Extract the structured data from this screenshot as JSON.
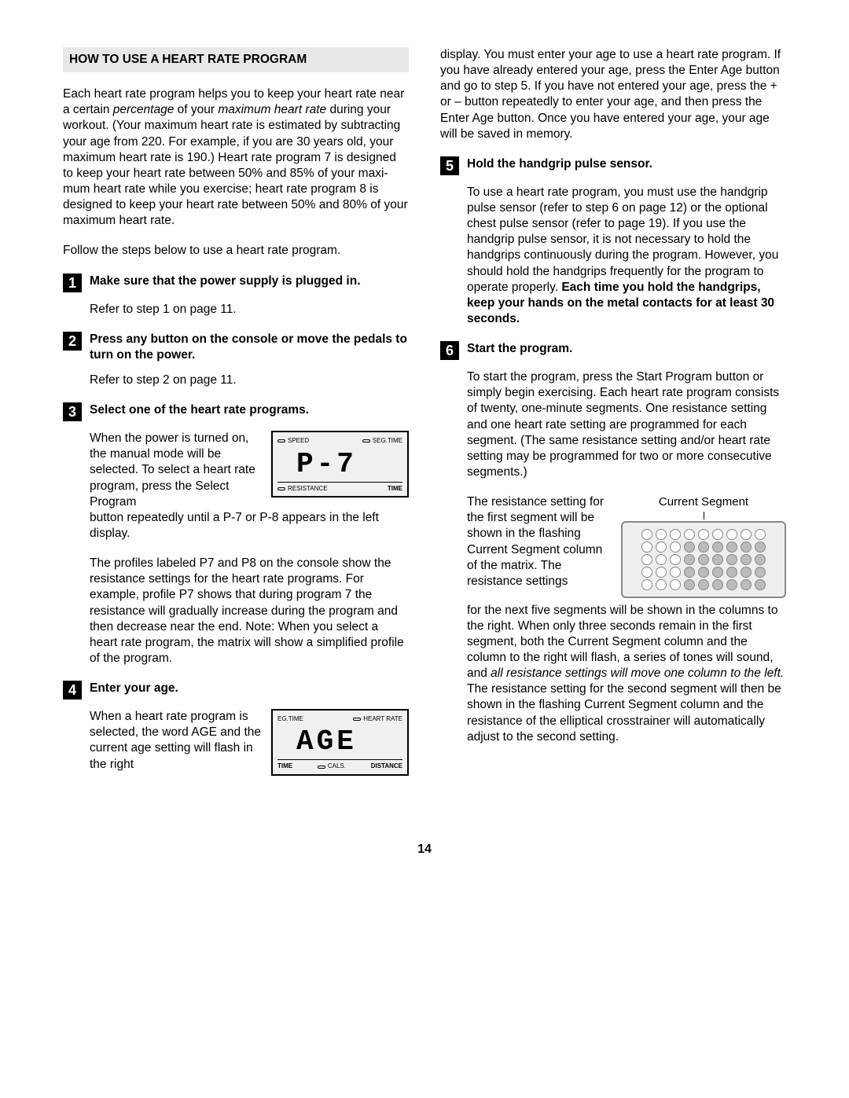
{
  "section_title": "HOW TO USE A HEART RATE PROGRAM",
  "intro_p1_a": "Each heart rate program helps you to keep your heart rate near a certain ",
  "intro_p1_it1": "percentage",
  "intro_p1_b": " of your ",
  "intro_p1_it2": "maximum heart rate",
  "intro_p1_c": " during your workout. (Your maximum heart rate is estimated by subtracting your age from 220. For example, if you are 30 years old, your maximum heart rate is 190.) Heart rate program 7 is designed to keep your heart rate between 50% and 85% of your maxi­mum heart rate while you exercise; heart rate pro­gram 8 is designed to keep your heart rate between 50% and 80% of your maximum heart rate.",
  "intro_p2": "Follow the steps below to use a heart rate program.",
  "steps": {
    "s1": {
      "num": "1",
      "head": "Make sure that the power supply is plugged in.",
      "body": "Refer to step 1 on page 11."
    },
    "s2": {
      "num": "2",
      "head": "Press any button on the console or move the pedals to turn on the power.",
      "body": "Refer to step 2 on page 11."
    },
    "s3": {
      "num": "3",
      "head": "Select one of the heart rate programs.",
      "p1": "When the power is turned on, the manual mode will be selected. To select a heart rate program, press the Select Program",
      "p1b": "button repeatedly until a P-7 or P-8 appears in the left display.",
      "p2": "The profiles labeled P7 and P8 on the console show the resistance settings for the heart rate programs. For example, profile P7 shows that during program 7 the resistance will gradually increase during the program and then decrease near the end. Note: When you select a heart rate program, the matrix will show a simplified profile of the program.",
      "lcd": {
        "top": {
          "a": "SPEED",
          "b": "SEG.TIME"
        },
        "seg": "P-7",
        "bot": {
          "a": "RESISTANCE",
          "b": "TIME"
        }
      }
    },
    "s4": {
      "num": "4",
      "head": "Enter your age.",
      "p1": "When a heart rate program is select­ed, the word AGE and the current age setting will flash in the right",
      "lcd": {
        "top": {
          "a": "EG.TIME",
          "b": "HEART RATE"
        },
        "seg": "AGE",
        "bot": {
          "a": "TIME",
          "b": "CALS.",
          "c": "DISTANCE"
        }
      },
      "cont": "display. You must enter your age to use a heart rate program. If you have already entered your age, press the Enter Age button and go to step 5. If you have not entered your age, press the + or – button repeatedly to enter your age, and then press the Enter Age button. Once you have entered your age, your age will be saved in memory."
    },
    "s5": {
      "num": "5",
      "head": "Hold the handgrip pulse sensor.",
      "p1": "To use a heart rate program, you must use the handgrip pulse sensor (refer to step 6 on page 12) or the optional chest pulse sensor (refer to page 19). If you use the handgrip pulse sensor, it is not necessary to hold the handgrips continu­ously during the program. However, you should hold the handgrips frequently for the program to operate properly. ",
      "p1b": "Each time you hold the hand­grips, keep your hands on the metal contacts for at least 30 seconds."
    },
    "s6": {
      "num": "6",
      "head": "Start the program.",
      "p1": "To start the program, press the Start Program button or simply begin exercising. Each heart rate program consists of twenty, one-minute seg­ments. One resistance setting and one heart rate setting are programmed for each segment. (The same resistance setting and/or heart rate setting may be programmed for two or more consecutive segments.)",
      "p2a": "The resistance set­ting for the first segment will be shown in the flash­ing Current Segment column of the matrix. The resistance settings",
      "p2b": "for the next five segments will be shown in the columns to the right. When only three seconds remain in the first segment, both the Current Segment column and the column to the right will flash, a series of tones will sound, and ",
      "p2it": "all resis­tance settings will move one column to the left.",
      "p2c": " The resistance setting for the second segment will then be shown in the flashing Current Segment column and the resistance of the ellipti­cal crosstrainer will automatically adjust to the sec­ond setting.",
      "matrix_label": "Current Segment",
      "matrix": [
        [
          0,
          0,
          0,
          0,
          0,
          0,
          0,
          0,
          0
        ],
        [
          0,
          0,
          0,
          1,
          1,
          1,
          1,
          1,
          1
        ],
        [
          0,
          0,
          0,
          1,
          1,
          1,
          1,
          1,
          1
        ],
        [
          0,
          0,
          0,
          1,
          1,
          1,
          1,
          1,
          1
        ],
        [
          0,
          0,
          0,
          1,
          1,
          1,
          1,
          1,
          1
        ]
      ]
    }
  },
  "page_number": "14"
}
